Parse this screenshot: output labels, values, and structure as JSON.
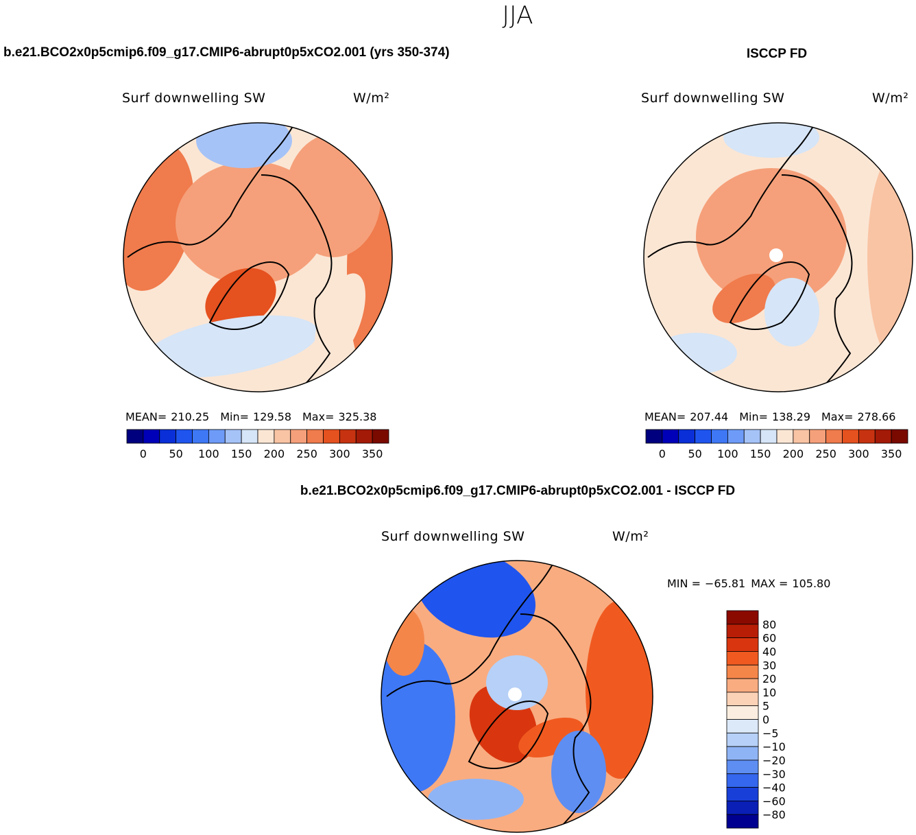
{
  "title": "JJA",
  "panels": [
    {
      "title": "b.e21.BCO2x0p5cmip6.f09_g17.CMIP6-abrupt0p5xCO2.001 (yrs 350-374)",
      "variable": "Surf downwelling SW",
      "units": "W/m²",
      "stats": {
        "mean_label": "MEAN=",
        "mean": "210.25",
        "min_label": "Min=",
        "min": "129.58",
        "max_label": "Max=",
        "max": "325.38"
      },
      "colorbar": {
        "colors": [
          "#00007f",
          "#0000b8",
          "#0a2fd8",
          "#1f55ee",
          "#3f78f5",
          "#6e9bf7",
          "#a6c3f7",
          "#d6e5f7",
          "#fbe6d4",
          "#f9c4a4",
          "#f5a07a",
          "#f07b4c",
          "#e5511f",
          "#c73310",
          "#a31a07",
          "#7a0a00"
        ],
        "labels": [
          "0",
          "50",
          "100",
          "150",
          "200",
          "250",
          "300",
          "350"
        ]
      }
    },
    {
      "title": "ISCCP FD",
      "variable": "Surf downwelling SW",
      "units": "W/m²",
      "stats": {
        "mean_label": "MEAN=",
        "mean": "207.44",
        "min_label": "Min=",
        "min": "138.29",
        "max_label": "Max=",
        "max": "278.66"
      },
      "colorbar": {
        "colors": [
          "#00007f",
          "#0000b8",
          "#0a2fd8",
          "#1f55ee",
          "#3f78f5",
          "#6e9bf7",
          "#a6c3f7",
          "#d6e5f7",
          "#fbe6d4",
          "#f9c4a4",
          "#f5a07a",
          "#f07b4c",
          "#e5511f",
          "#c73310",
          "#a31a07",
          "#7a0a00"
        ],
        "labels": [
          "0",
          "50",
          "100",
          "150",
          "200",
          "250",
          "300",
          "350"
        ]
      }
    }
  ],
  "difference": {
    "title": "b.e21.BCO2x0p5cmip6.f09_g17.CMIP6-abrupt0p5xCO2.001 - ISCCP FD",
    "variable": "Surf downwelling SW",
    "units": "W/m²",
    "stats": {
      "min_label": "MIN =",
      "min": "−65.81",
      "max_label": "MAX =",
      "max": "105.80"
    },
    "colorbar": {
      "colors": [
        "#8b0a00",
        "#b81e05",
        "#d9360f",
        "#f05a20",
        "#f5864a",
        "#f9ac80",
        "#fbd2b6",
        "#fbeee0",
        "#dce9f8",
        "#b6d0f7",
        "#8fb4f5",
        "#5e8ef2",
        "#3567ee",
        "#1840d8",
        "#0a1fb5",
        "#000090"
      ],
      "labels": [
        "80",
        "60",
        "40",
        "30",
        "20",
        "10",
        "5",
        "0",
        "−5",
        "−10",
        "−20",
        "−30",
        "−40",
        "−60",
        "−80"
      ]
    }
  }
}
